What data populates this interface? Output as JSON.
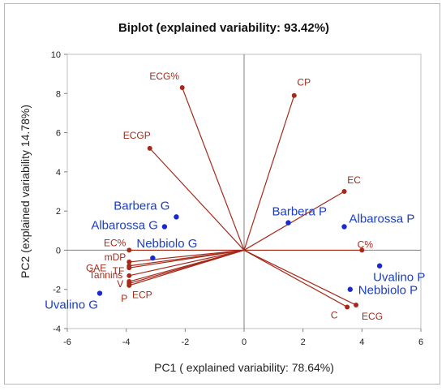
{
  "chart_data": {
    "type": "scatter",
    "title": "Biplot (explained variability: 93.42%)",
    "xlabel": "PC1 ( explained variability: 78.64%)",
    "ylabel": "PC2 (explained variability 14.78%)",
    "xlim": [
      -6,
      6
    ],
    "ylim": [
      -4,
      10
    ],
    "xticks": [
      -6,
      -4,
      -2,
      0,
      2,
      4,
      6
    ],
    "yticks": [
      -4,
      -2,
      0,
      2,
      4,
      6,
      8,
      10
    ],
    "grid": false,
    "colors": {
      "variables": "#a52a1a",
      "observations": "#1a2ad0",
      "observation_labels": "#1a3ec8",
      "variable_labels": "#a52a1a",
      "zero_lines": "#7f7f7f"
    },
    "variables": [
      {
        "name": "ECG%",
        "x": -2.1,
        "y": 8.3
      },
      {
        "name": "CP",
        "x": 1.7,
        "y": 7.9
      },
      {
        "name": "ECGP",
        "x": -3.2,
        "y": 5.2
      },
      {
        "name": "EC",
        "x": 3.4,
        "y": 3.0
      },
      {
        "name": "C%",
        "x": 4.0,
        "y": 0.0
      },
      {
        "name": "EC%",
        "x": -3.9,
        "y": 0.0
      },
      {
        "name": "mDP",
        "x": -3.9,
        "y": -0.6
      },
      {
        "name": "GAE",
        "x": -3.9,
        "y": -0.8
      },
      {
        "name": "TF",
        "x": -3.9,
        "y": -0.9
      },
      {
        "name": "Tannins",
        "x": -3.9,
        "y": -1.3
      },
      {
        "name": "V",
        "x": -3.9,
        "y": -1.6
      },
      {
        "name": "P",
        "x": -3.9,
        "y": -1.8
      },
      {
        "name": "ECP",
        "x": -3.9,
        "y": -1.7
      },
      {
        "name": "C",
        "x": 3.5,
        "y": -2.9
      },
      {
        "name": "ECG",
        "x": 3.8,
        "y": -2.8
      }
    ],
    "observations": [
      {
        "name": "Barbera G",
        "x": -2.3,
        "y": 1.7
      },
      {
        "name": "Albarossa G",
        "x": -2.7,
        "y": 1.2
      },
      {
        "name": "Nebbiolo G",
        "x": -3.1,
        "y": -0.4
      },
      {
        "name": "Uvalino G",
        "x": -4.9,
        "y": -2.2
      },
      {
        "name": "Barbera P",
        "x": 1.5,
        "y": 1.4
      },
      {
        "name": "Albarossa P",
        "x": 3.4,
        "y": 1.2
      },
      {
        "name": "Uvalino P",
        "x": 4.6,
        "y": -0.8
      },
      {
        "name": "Nebbiolo P",
        "x": 3.6,
        "y": -2.0
      }
    ]
  }
}
